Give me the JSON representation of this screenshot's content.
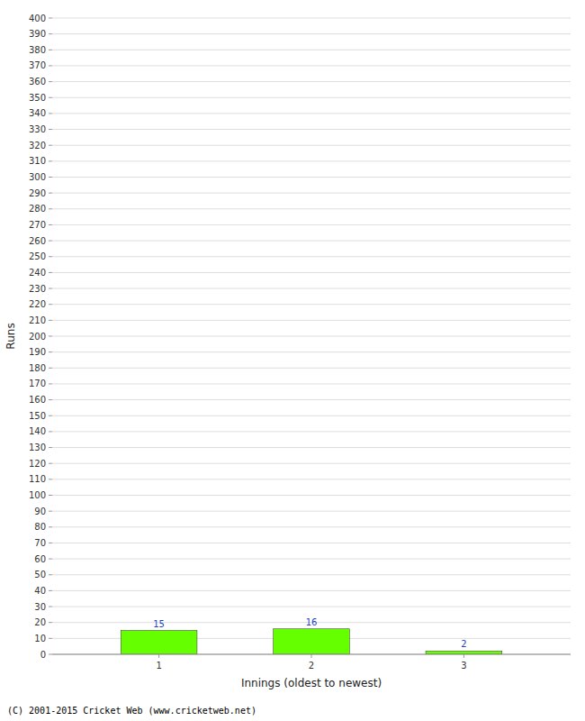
{
  "chart_data": {
    "type": "bar",
    "x": [
      1,
      2,
      3
    ],
    "values": [
      15,
      16,
      2
    ],
    "color": "#66ff00",
    "xlabel": "Innings (oldest to newest)",
    "ylabel": "Runs",
    "xlim": [
      0.3,
      3.7
    ],
    "xticks": [
      1,
      2,
      3
    ],
    "ylim": [
      0,
      400
    ],
    "yticks": [
      0,
      10,
      20,
      30,
      40,
      50,
      60,
      70,
      80,
      90,
      100,
      110,
      120,
      130,
      140,
      150,
      160,
      170,
      180,
      190,
      200,
      210,
      220,
      230,
      240,
      250,
      260,
      270,
      280,
      290,
      300,
      310,
      320,
      330,
      340,
      350,
      360,
      370,
      380,
      390,
      400
    ],
    "grid": true,
    "data_labels": true,
    "footer": "(C) 2001-2015 Cricket Web (www.cricketweb.net)"
  }
}
